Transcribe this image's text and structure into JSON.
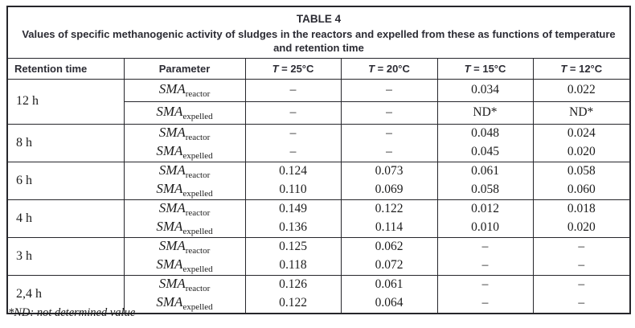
{
  "title": "TABLE 4",
  "caption": "Values of specific methanogenic activity of sludges in the reactors and expelled from these as functions of temperature and retention time",
  "columns": {
    "retention_time": "Retention time",
    "parameter": "Parameter",
    "temps": [
      {
        "symbol": "T",
        "rest": " = 25°C"
      },
      {
        "symbol": "T",
        "rest": " = 20°C"
      },
      {
        "symbol": "T",
        "rest": " = 15°C"
      },
      {
        "symbol": "T",
        "rest": " = 12°C"
      }
    ]
  },
  "param_base": "SMA",
  "param_subs": [
    "reactor",
    "expelled"
  ],
  "rows": [
    {
      "time": "12 h",
      "divider": true,
      "values": [
        [
          "–",
          "–",
          "0.034",
          "0.022"
        ],
        [
          "–",
          "–",
          "ND*",
          "ND*"
        ]
      ]
    },
    {
      "time": "8 h",
      "values": [
        [
          "–",
          "–",
          "0.048",
          "0.024"
        ],
        [
          "–",
          "–",
          "0.045",
          "0.020"
        ]
      ]
    },
    {
      "time": "6 h",
      "values": [
        [
          "0.124",
          "0.073",
          "0.061",
          "0.058"
        ],
        [
          "0.110",
          "0.069",
          "0.058",
          "0.060"
        ]
      ]
    },
    {
      "time": "4 h",
      "values": [
        [
          "0.149",
          "0.122",
          "0.012",
          "0.018"
        ],
        [
          "0.136",
          "0.114",
          "0.010",
          "0.020"
        ]
      ]
    },
    {
      "time": "3 h",
      "values": [
        [
          "0.125",
          "0.062",
          "–",
          "–"
        ],
        [
          "0.118",
          "0.072",
          "–",
          "–"
        ]
      ]
    },
    {
      "time": "2,4 h",
      "values": [
        [
          "0.126",
          "0.061",
          "–",
          "–"
        ],
        [
          "0.122",
          "0.064",
          "–",
          "–"
        ]
      ]
    }
  ],
  "footnote": "*ND: not determined value",
  "colors": {
    "border": "#26262b",
    "heading_text": "#2b2b33",
    "body_text": "#1c1c1c",
    "background": "#ffffff"
  }
}
